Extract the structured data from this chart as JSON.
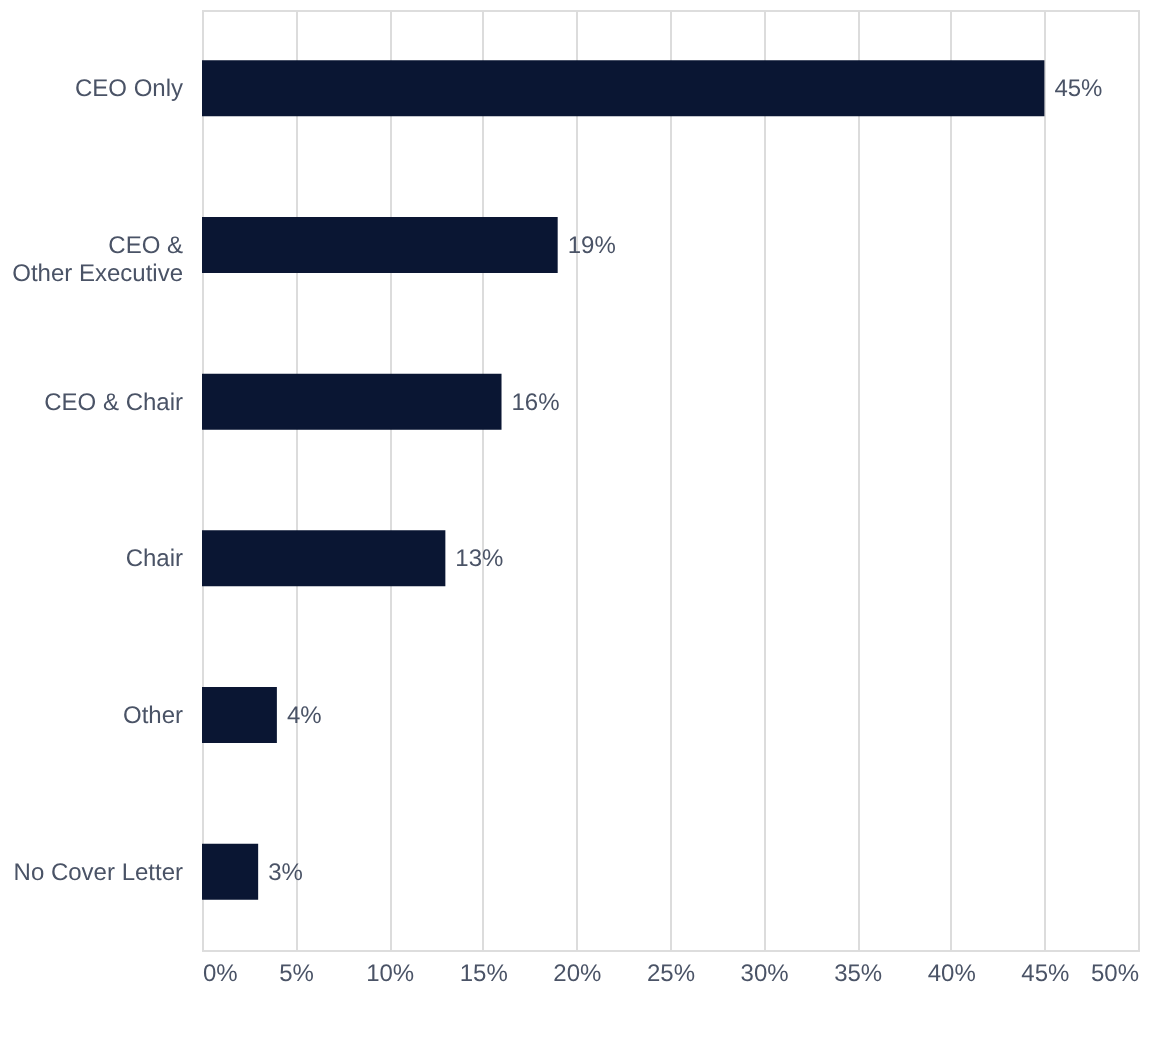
{
  "chart_data": {
    "type": "bar",
    "orientation": "horizontal",
    "categories": [
      "CEO Only",
      "CEO &\nOther Executive",
      "CEO & Chair",
      "Chair",
      "Other",
      "No Cover Letter"
    ],
    "values": [
      45,
      19,
      16,
      13,
      4,
      3
    ],
    "color": "#0a1633",
    "xlim": [
      0,
      50
    ],
    "xticks": [
      {
        "value": 0,
        "label": "0%"
      },
      {
        "value": 5,
        "label": "5%"
      },
      {
        "value": 10,
        "label": "10%"
      },
      {
        "value": 15,
        "label": "15%"
      },
      {
        "value": 20,
        "label": "20%"
      },
      {
        "value": 25,
        "label": "25%"
      },
      {
        "value": 30,
        "label": "30%"
      },
      {
        "value": 35,
        "label": "35%"
      },
      {
        "value": 40,
        "label": "40%"
      },
      {
        "value": 45,
        "label": "45%"
      },
      {
        "value": 50,
        "label": "50%"
      }
    ],
    "value_labels": [
      "45%",
      "19%",
      "16%",
      "13%",
      "4%",
      "3%"
    ],
    "grid": "x"
  }
}
